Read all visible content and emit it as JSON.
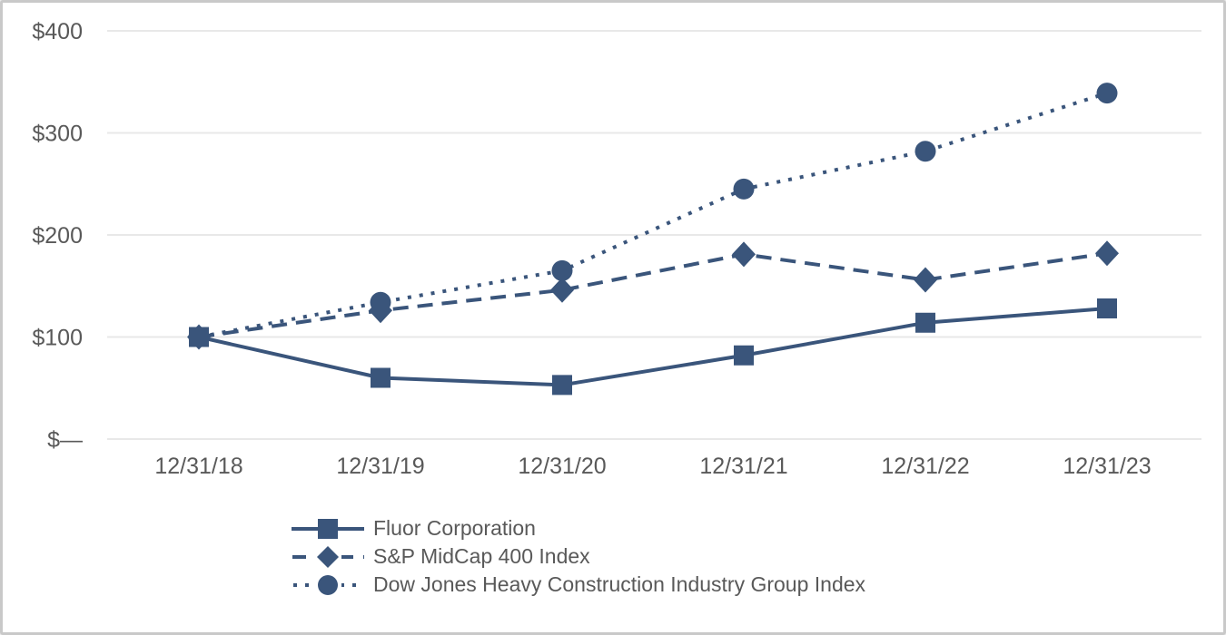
{
  "chart_data": {
    "type": "line",
    "categories": [
      "12/31/18",
      "12/31/19",
      "12/31/20",
      "12/31/21",
      "12/31/22",
      "12/31/23"
    ],
    "series": [
      {
        "name": "Fluor Corporation",
        "marker": "square",
        "line_style": "solid",
        "values": [
          100,
          60,
          53,
          82,
          114,
          128
        ]
      },
      {
        "name": "S&P MidCap 400 Index",
        "marker": "diamond",
        "line_style": "dashed",
        "values": [
          100,
          126,
          146,
          181,
          156,
          182
        ]
      },
      {
        "name": "Dow Jones Heavy Construction Industry Group Index",
        "marker": "circle",
        "line_style": "dotted",
        "values": [
          100,
          134,
          165,
          245,
          282,
          339
        ]
      }
    ],
    "y_axis": {
      "min": 0,
      "max": 400,
      "ticks": [
        {
          "value": 0,
          "label": "$—"
        },
        {
          "value": 100,
          "label": "$100"
        },
        {
          "value": 200,
          "label": "$200"
        },
        {
          "value": 300,
          "label": "$300"
        },
        {
          "value": 400,
          "label": "$400"
        }
      ]
    },
    "grid": true,
    "legend_position": "bottom-left",
    "colors": {
      "series": "#3a557b",
      "grid": "#e8e8e8",
      "text": "#595959",
      "border": "#c9c9c9"
    }
  }
}
